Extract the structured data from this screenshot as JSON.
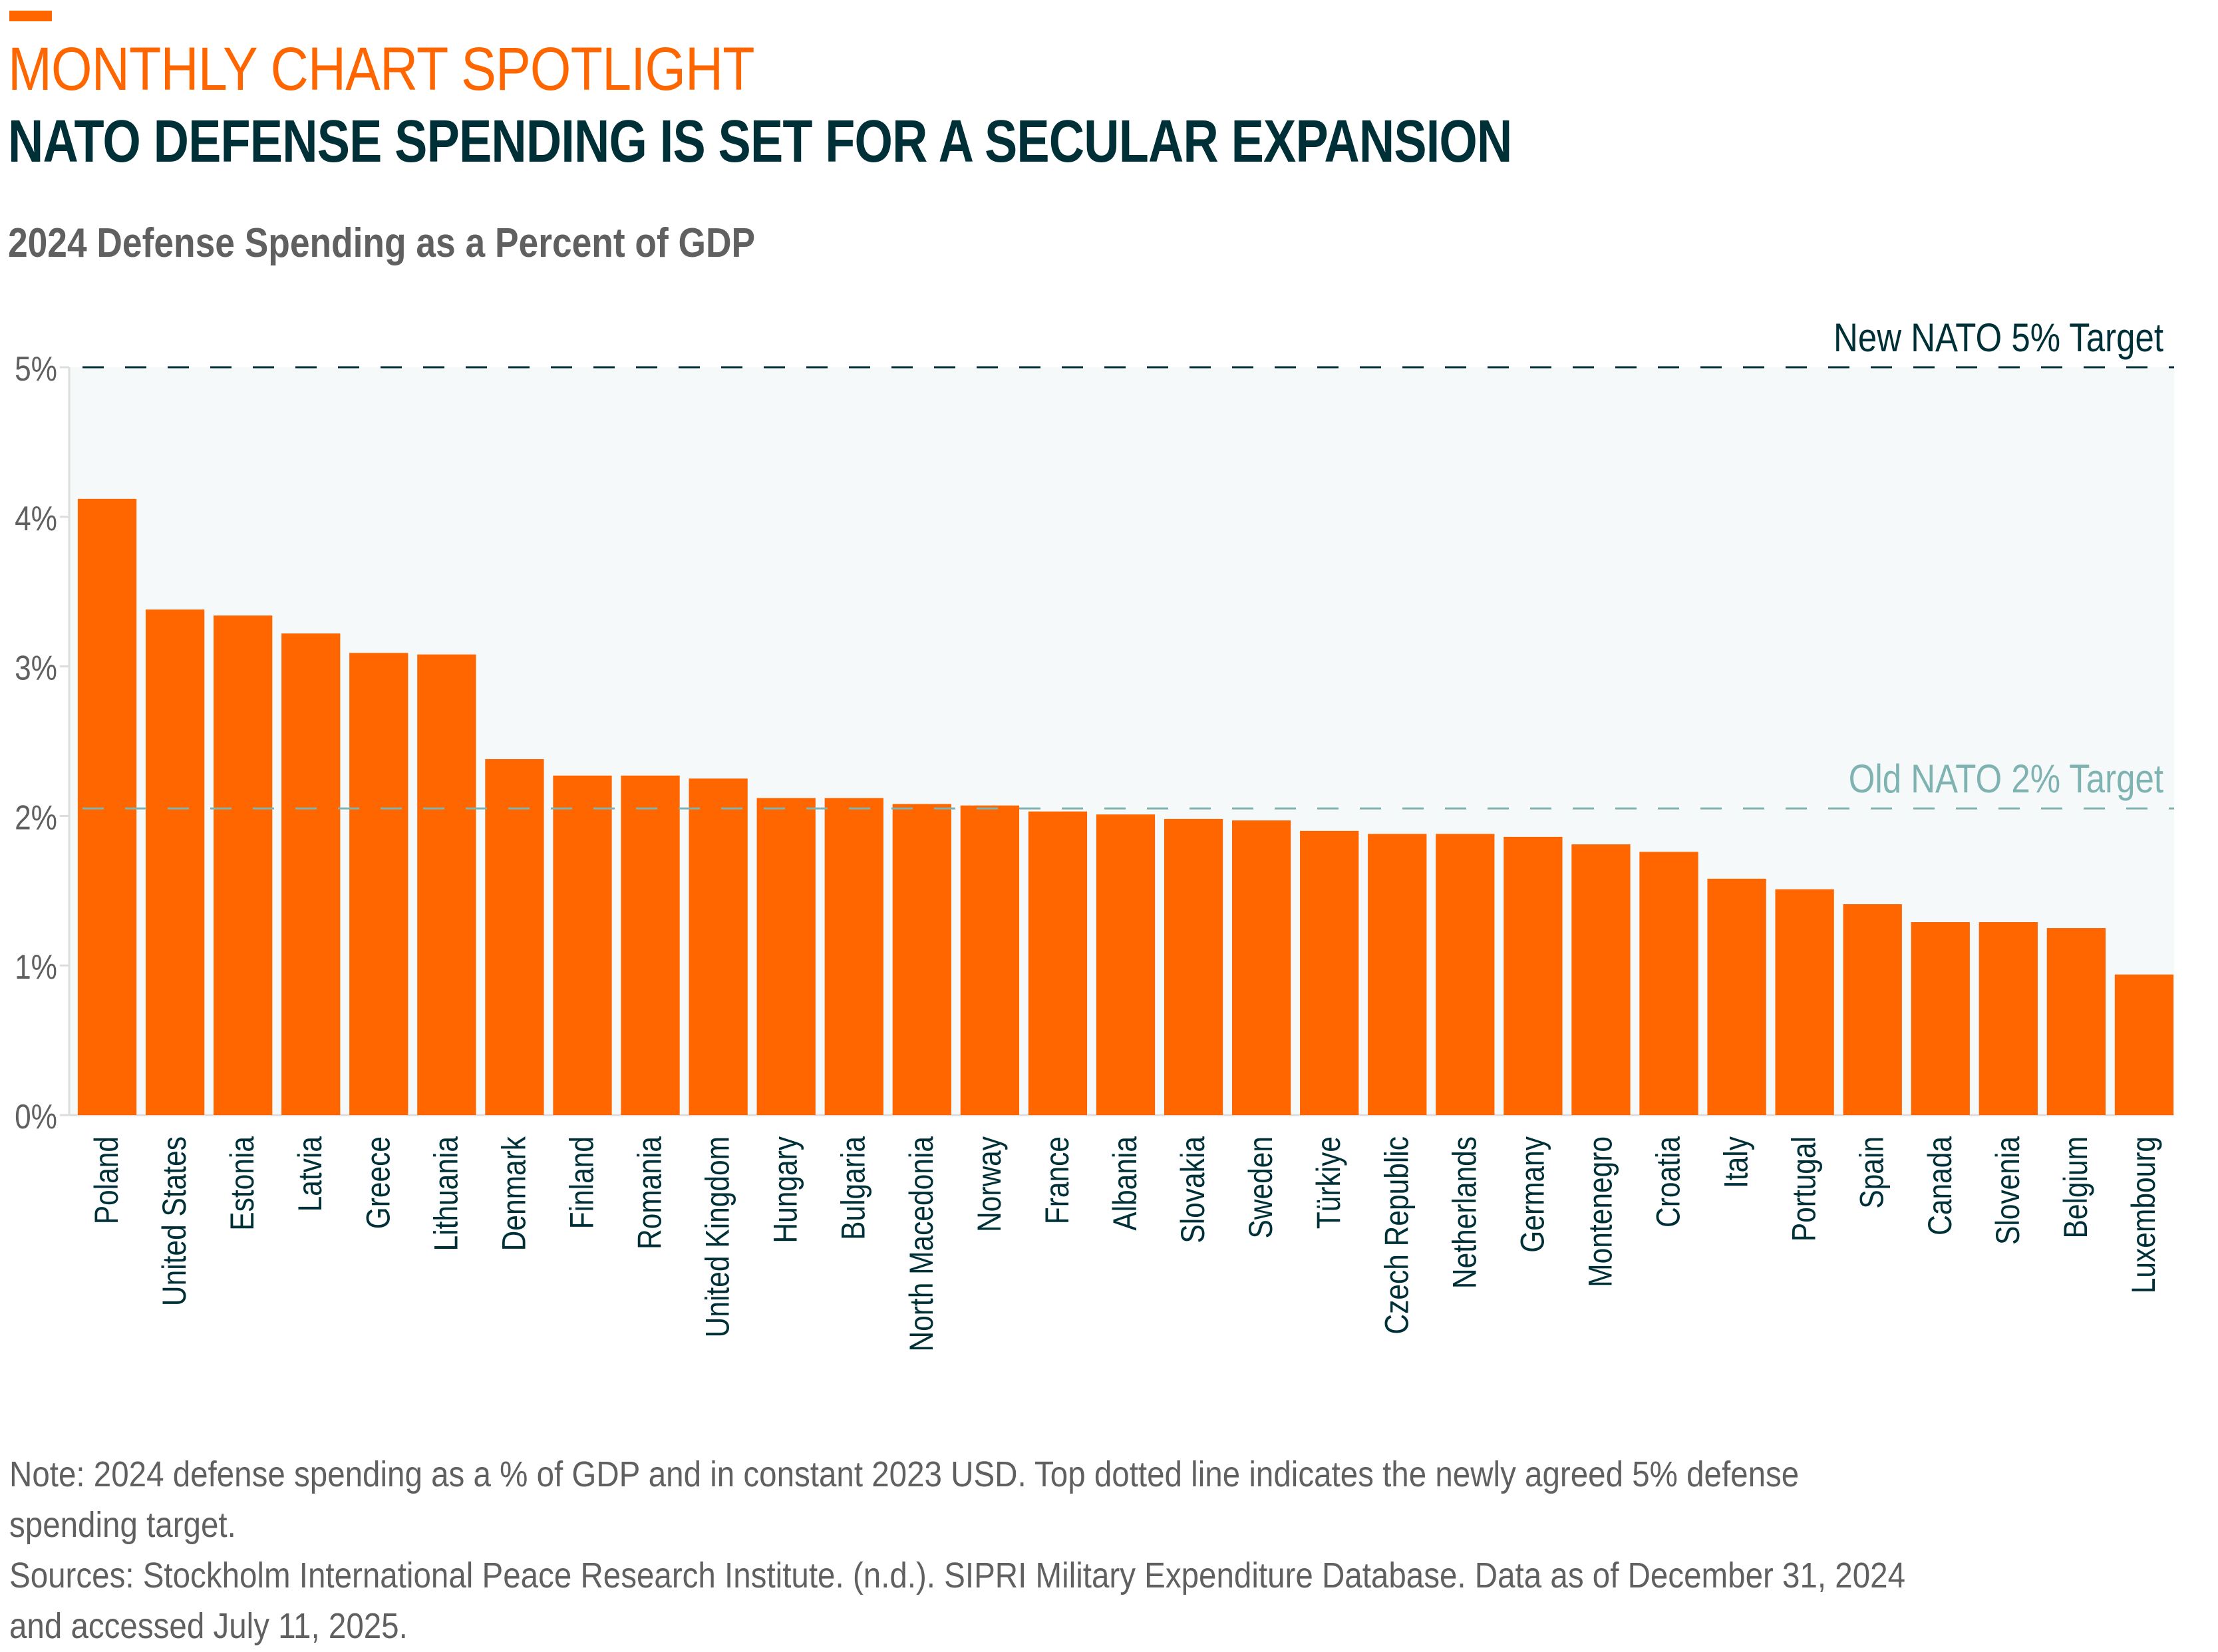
{
  "header": {
    "kicker": "MONTHLY CHART SPOTLIGHT",
    "title": "NATO DEFENSE SPENDING IS SET FOR A SECULAR EXPANSION",
    "subtitle": "2024 Defense Spending as a Percent of GDP"
  },
  "colors": {
    "accent": "#ff6600",
    "bar": "#ff6600",
    "title": "#003037",
    "text_gray": "#606060",
    "plot_bg": "#f5f9fa",
    "new_target": "#003037",
    "old_target": "#7fb3b1"
  },
  "footer": {
    "note_line1": "Note: 2024 defense spending as a % of GDP and in constant 2023 USD. Top dotted line indicates the newly agreed 5% defense",
    "note_line2": "spending target.",
    "sources_line1": "Sources: Stockholm International Peace Research Institute. (n.d.). SIPRI Military Expenditure Database. Data as of December 31, 2024",
    "sources_line2": "and accessed July 11, 2025."
  },
  "chart_data": {
    "type": "bar",
    "title": "2024 Defense Spending as a Percent of GDP",
    "xlabel": "",
    "ylabel": "",
    "ylim": [
      0,
      5
    ],
    "yticks": [
      0,
      1,
      2,
      3,
      4,
      5
    ],
    "ytick_labels": [
      "0%",
      "1%",
      "2%",
      "3%",
      "4%",
      "5%"
    ],
    "grid": false,
    "categories": [
      "Poland",
      "United States",
      "Estonia",
      "Latvia",
      "Greece",
      "Lithuania",
      "Denmark",
      "Finland",
      "Romania",
      "United Kingdom",
      "Hungary",
      "Bulgaria",
      "North Macedonia",
      "Norway",
      "France",
      "Albania",
      "Slovakia",
      "Sweden",
      "Türkiye",
      "Czech Republic",
      "Netherlands",
      "Germany",
      "Montenegro",
      "Croatia",
      "Italy",
      "Portugal",
      "Spain",
      "Canada",
      "Slovenia",
      "Belgium",
      "Luxembourg"
    ],
    "values": [
      4.12,
      3.38,
      3.34,
      3.22,
      3.09,
      3.08,
      2.38,
      2.27,
      2.27,
      2.25,
      2.12,
      2.12,
      2.08,
      2.07,
      2.03,
      2.01,
      1.98,
      1.97,
      1.9,
      1.88,
      1.88,
      1.86,
      1.81,
      1.76,
      1.58,
      1.51,
      1.41,
      1.29,
      1.29,
      1.25,
      0.94
    ],
    "reference_lines": [
      {
        "name": "new-target",
        "value": 5,
        "label": "New NATO 5% Target",
        "style": "dashed"
      },
      {
        "name": "old-target",
        "value": 2.05,
        "label": "Old NATO 2% Target",
        "style": "dashed"
      }
    ]
  }
}
